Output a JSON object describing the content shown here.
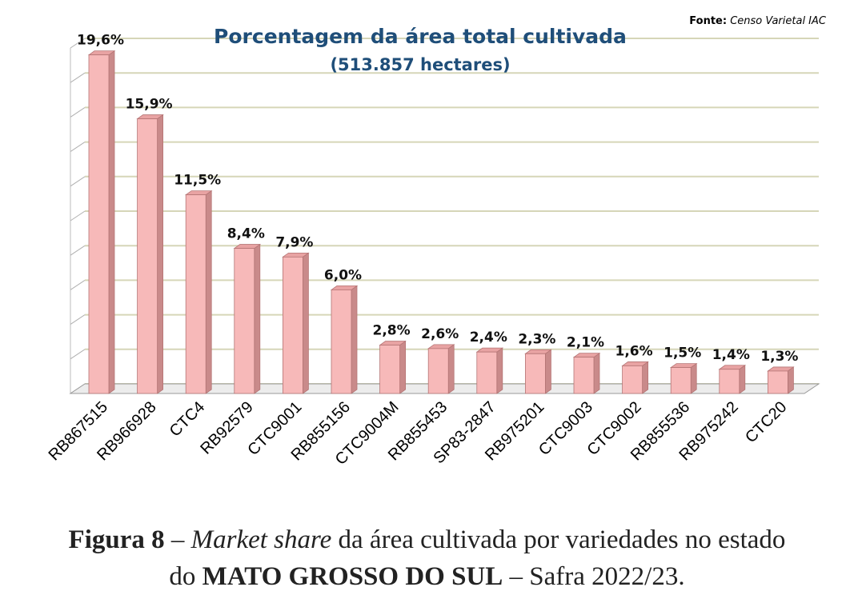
{
  "chart_data": {
    "type": "bar",
    "title": "Porcentagem da área total cultivada",
    "subtitle": "(513.857 hectares)",
    "source_label": "Fonte:",
    "source_value": "Censo Varietal  IAC",
    "categories": [
      "RB867515",
      "RB966928",
      "CTC4",
      "RB92579",
      "CTC9001",
      "RB855156",
      "CTC9004M",
      "RB855453",
      "SP83-2847",
      "RB975201",
      "CTC9003",
      "CTC9002",
      "RB855536",
      "RB975242",
      "CTC20"
    ],
    "values": [
      19.6,
      15.9,
      11.5,
      8.4,
      7.9,
      6.0,
      2.8,
      2.6,
      2.4,
      2.3,
      2.1,
      1.6,
      1.5,
      1.4,
      1.3
    ],
    "data_labels": [
      "19,6%",
      "15,9%",
      "11,5%",
      "8,4%",
      "7,9%",
      "6,0%",
      "2,8%",
      "2,6%",
      "2,4%",
      "2,3%",
      "2,1%",
      "1,6%",
      "1,5%",
      "1,4%",
      "1,3%"
    ],
    "ylim": [
      0,
      20
    ],
    "grid": true,
    "colors": {
      "bar_front": "#f7b9b9",
      "bar_side": "#c98a8a",
      "bar_top": "#e8a3a3",
      "bar_edge": "#b57575",
      "grid": "#d6d6b8",
      "title": "#1f4e79"
    }
  },
  "caption": {
    "fig_label": "Figura 8",
    "dash1": " – ",
    "italic_text": "Market share",
    "text1": " da área cultivada por variedades no estado",
    "text2": "do ",
    "state": "MATO GROSSO DO SUL",
    "text3": " – Safra 2022/23."
  }
}
